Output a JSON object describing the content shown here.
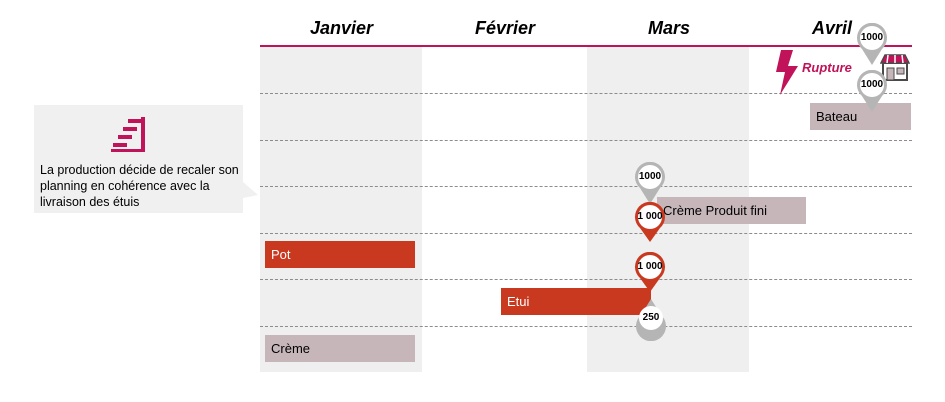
{
  "months": [
    "Janvier",
    "Février",
    "Mars",
    "Avril"
  ],
  "callout": {
    "text": "La production décide de recaler son planning en cohérence avec la livraison des étuis"
  },
  "rupture": {
    "label": "Rupture"
  },
  "bars": {
    "bateau": "Bateau",
    "creme_produit_fini": "Crème Produit fini",
    "pot": "Pot",
    "etui": "Etui",
    "creme": "Crème"
  },
  "pins": {
    "avril_top": "1000",
    "avril_bottom": "1000",
    "mars_creme_grey": "1000",
    "mars_creme_red": "1 000",
    "mars_etui_red": "1 000",
    "mars_etui_grey": "250"
  },
  "colors": {
    "accent": "#c0135a",
    "red_bar": "#c9391f",
    "mauve_bar": "#c6b6ba",
    "column_shade": "#efefef"
  }
}
